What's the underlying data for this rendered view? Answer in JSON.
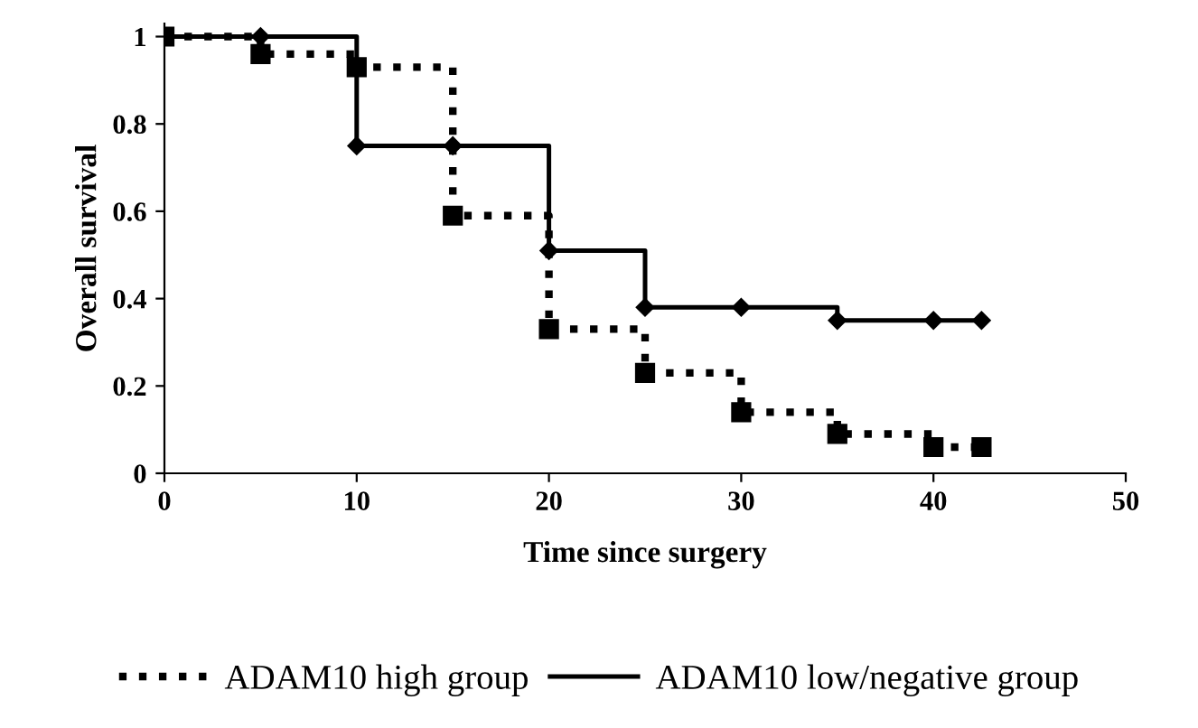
{
  "chart_data": {
    "type": "step",
    "xlabel": "Time since surgery",
    "ylabel": "Overall survival",
    "x": [
      0,
      5,
      10,
      15,
      20,
      25,
      30,
      35,
      40,
      42.5
    ],
    "series": [
      {
        "name": "ADAM10 high group",
        "color": "#000000",
        "line_style": "dotted",
        "marker": "square",
        "values": [
          1,
          0.96,
          0.93,
          0.59,
          0.33,
          0.23,
          0.14,
          0.09,
          0.06,
          0.06
        ]
      },
      {
        "name": "ADAM10 low/negative group",
        "color": "#000000",
        "line_style": "solid",
        "marker": "diamond",
        "values": [
          1,
          1,
          0.75,
          0.75,
          0.51,
          0.38,
          0.38,
          0.35,
          0.35,
          0.35
        ]
      }
    ],
    "xlim": [
      0,
      50
    ],
    "xticks": [
      0,
      10,
      20,
      30,
      40,
      50
    ],
    "ylim": [
      0,
      1.03
    ],
    "yticks": [
      0,
      0.2,
      0.4,
      0.6,
      0.8,
      1
    ],
    "grid": false,
    "legend": "bottom"
  }
}
